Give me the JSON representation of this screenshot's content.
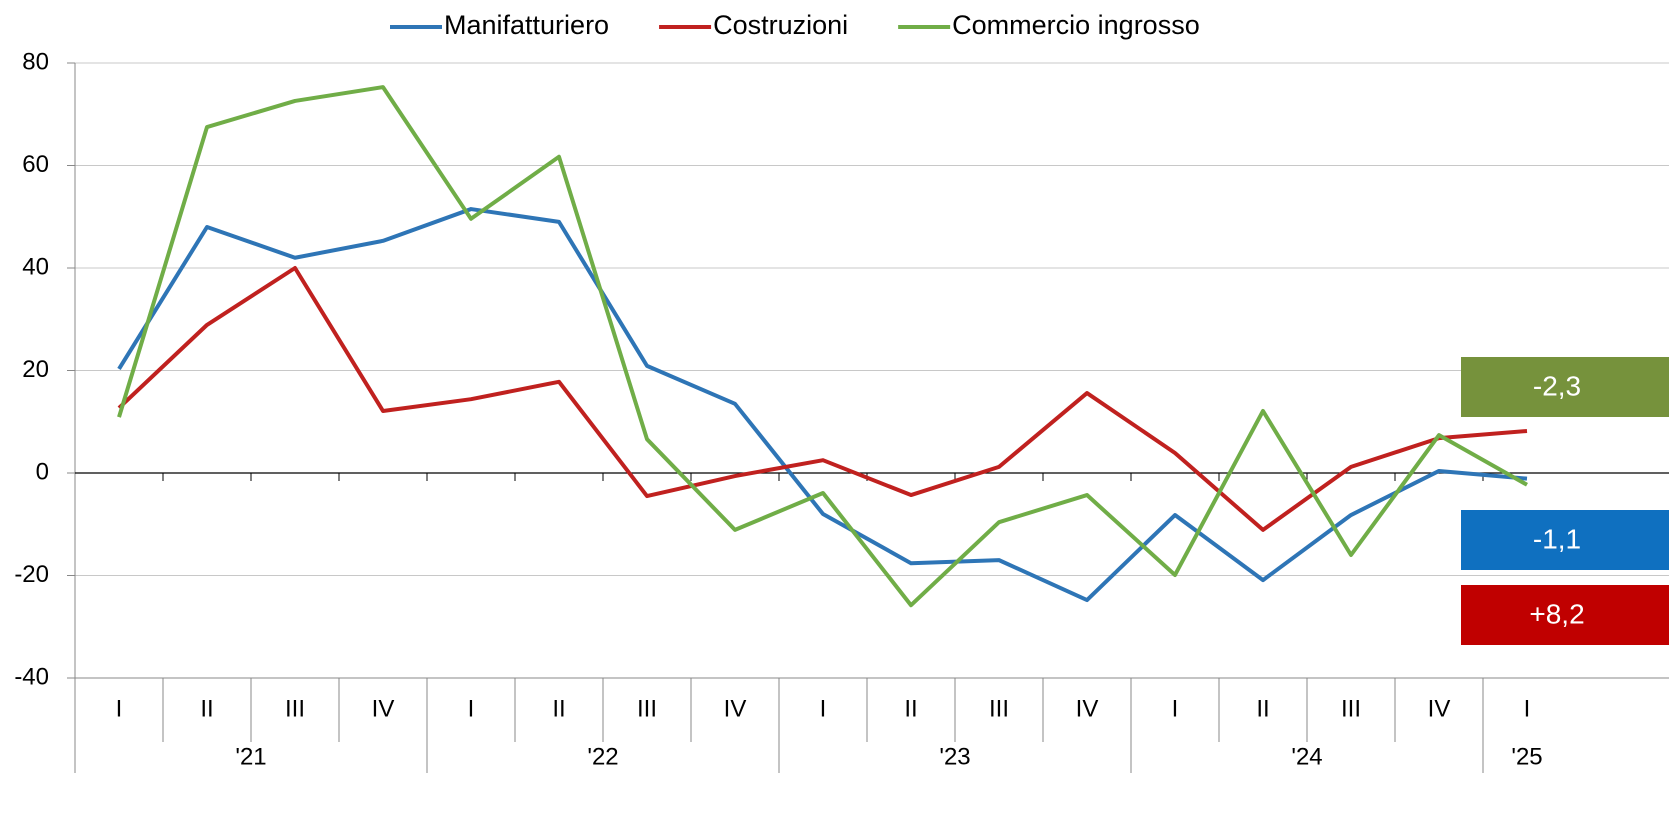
{
  "chart_data": {
    "type": "line",
    "categories": [
      "I",
      "II",
      "III",
      "IV",
      "I",
      "II",
      "III",
      "IV",
      "I",
      "II",
      "III",
      "IV",
      "I",
      "II",
      "III",
      "IV",
      "I"
    ],
    "years": [
      "'21",
      "'22",
      "'23",
      "'24",
      "'25"
    ],
    "series": [
      {
        "name": "Manifatturiero",
        "color": "#2e75b6",
        "label_color": "#0f70c0",
        "end_label": "-1,1",
        "values": [
          20.3,
          48,
          42,
          45.3,
          51.5,
          49,
          20.9,
          13.5,
          -8,
          -17.6,
          -17,
          -24.8,
          -8.2,
          -20.9,
          -8.2,
          0.4,
          -1.1
        ]
      },
      {
        "name": "Costruzioni",
        "color": "#c0211f",
        "label_color": "#c00000",
        "end_label": "+8,2",
        "values": [
          12.7,
          28.9,
          40,
          12.1,
          14.4,
          17.8,
          -4.5,
          -0.6,
          2.5,
          -4.3,
          1.2,
          15.6,
          3.9,
          -11.1,
          1.2,
          6.8,
          8.2
        ]
      },
      {
        "name": "Commercio ingrosso",
        "color": "#70ad47",
        "label_color": "#76923c",
        "end_label": "-2,3",
        "values": [
          10.9,
          67.5,
          72.6,
          75.3,
          49.6,
          61.7,
          6.6,
          -11.1,
          -3.9,
          -25.8,
          -9.6,
          -4.3,
          -19.9,
          12.1,
          -16,
          7.4,
          -2.3
        ]
      }
    ],
    "ylim": [
      -40,
      80
    ],
    "yticks": [
      -40,
      -20,
      0,
      20,
      40,
      60,
      80
    ],
    "grid": true,
    "legend": "top"
  }
}
